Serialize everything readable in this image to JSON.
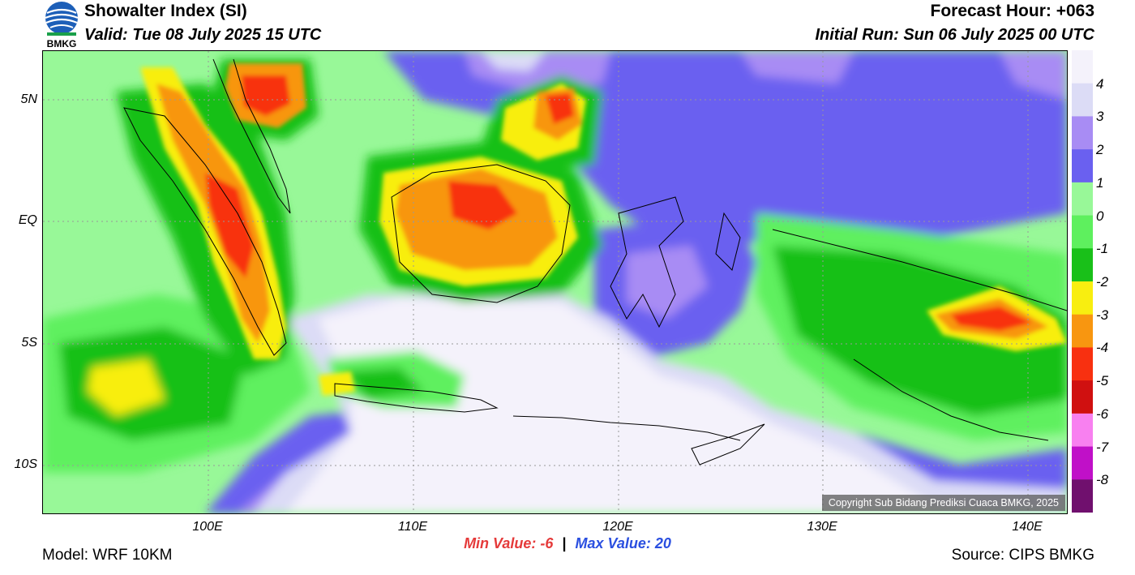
{
  "header": {
    "title": "Showalter Index (SI)",
    "valid": "Valid: Tue 08 July 2025 15 UTC",
    "forecast_hour": "Forecast Hour: +063",
    "initial_run": "Initial Run: Sun 06 July 2025 00 UTC",
    "logo_text": "BMKG"
  },
  "map": {
    "lat_labels": [
      "5N",
      "EQ",
      "5S",
      "10S"
    ],
    "lon_labels": [
      "100E",
      "110E",
      "120E",
      "130E",
      "140E"
    ],
    "copyright": "Copyright Sub Bidang Prediksi Cuaca BMKG, 2025"
  },
  "legend": {
    "labels": [
      "4",
      "3",
      "2",
      "1",
      "0",
      "-1",
      "-2",
      "-3",
      "-4",
      "-5",
      "-6",
      "-7",
      "-8"
    ],
    "colors": [
      "#f4f2fb",
      "#dcdcf6",
      "#a88cf4",
      "#6a60f0",
      "#98f898",
      "#5ef05e",
      "#19c019",
      "#f8ee10",
      "#f89610",
      "#f83010",
      "#d01010",
      "#f880f0",
      "#c010c8",
      "#70106e"
    ]
  },
  "stats": {
    "min_label": "Min Value:",
    "min_value": "-6",
    "separator": "|",
    "max_label": "Max Value:",
    "max_value": "20"
  },
  "footer": {
    "model": "Model: WRF 10KM",
    "source": "Source: CIPS BMKG"
  }
}
